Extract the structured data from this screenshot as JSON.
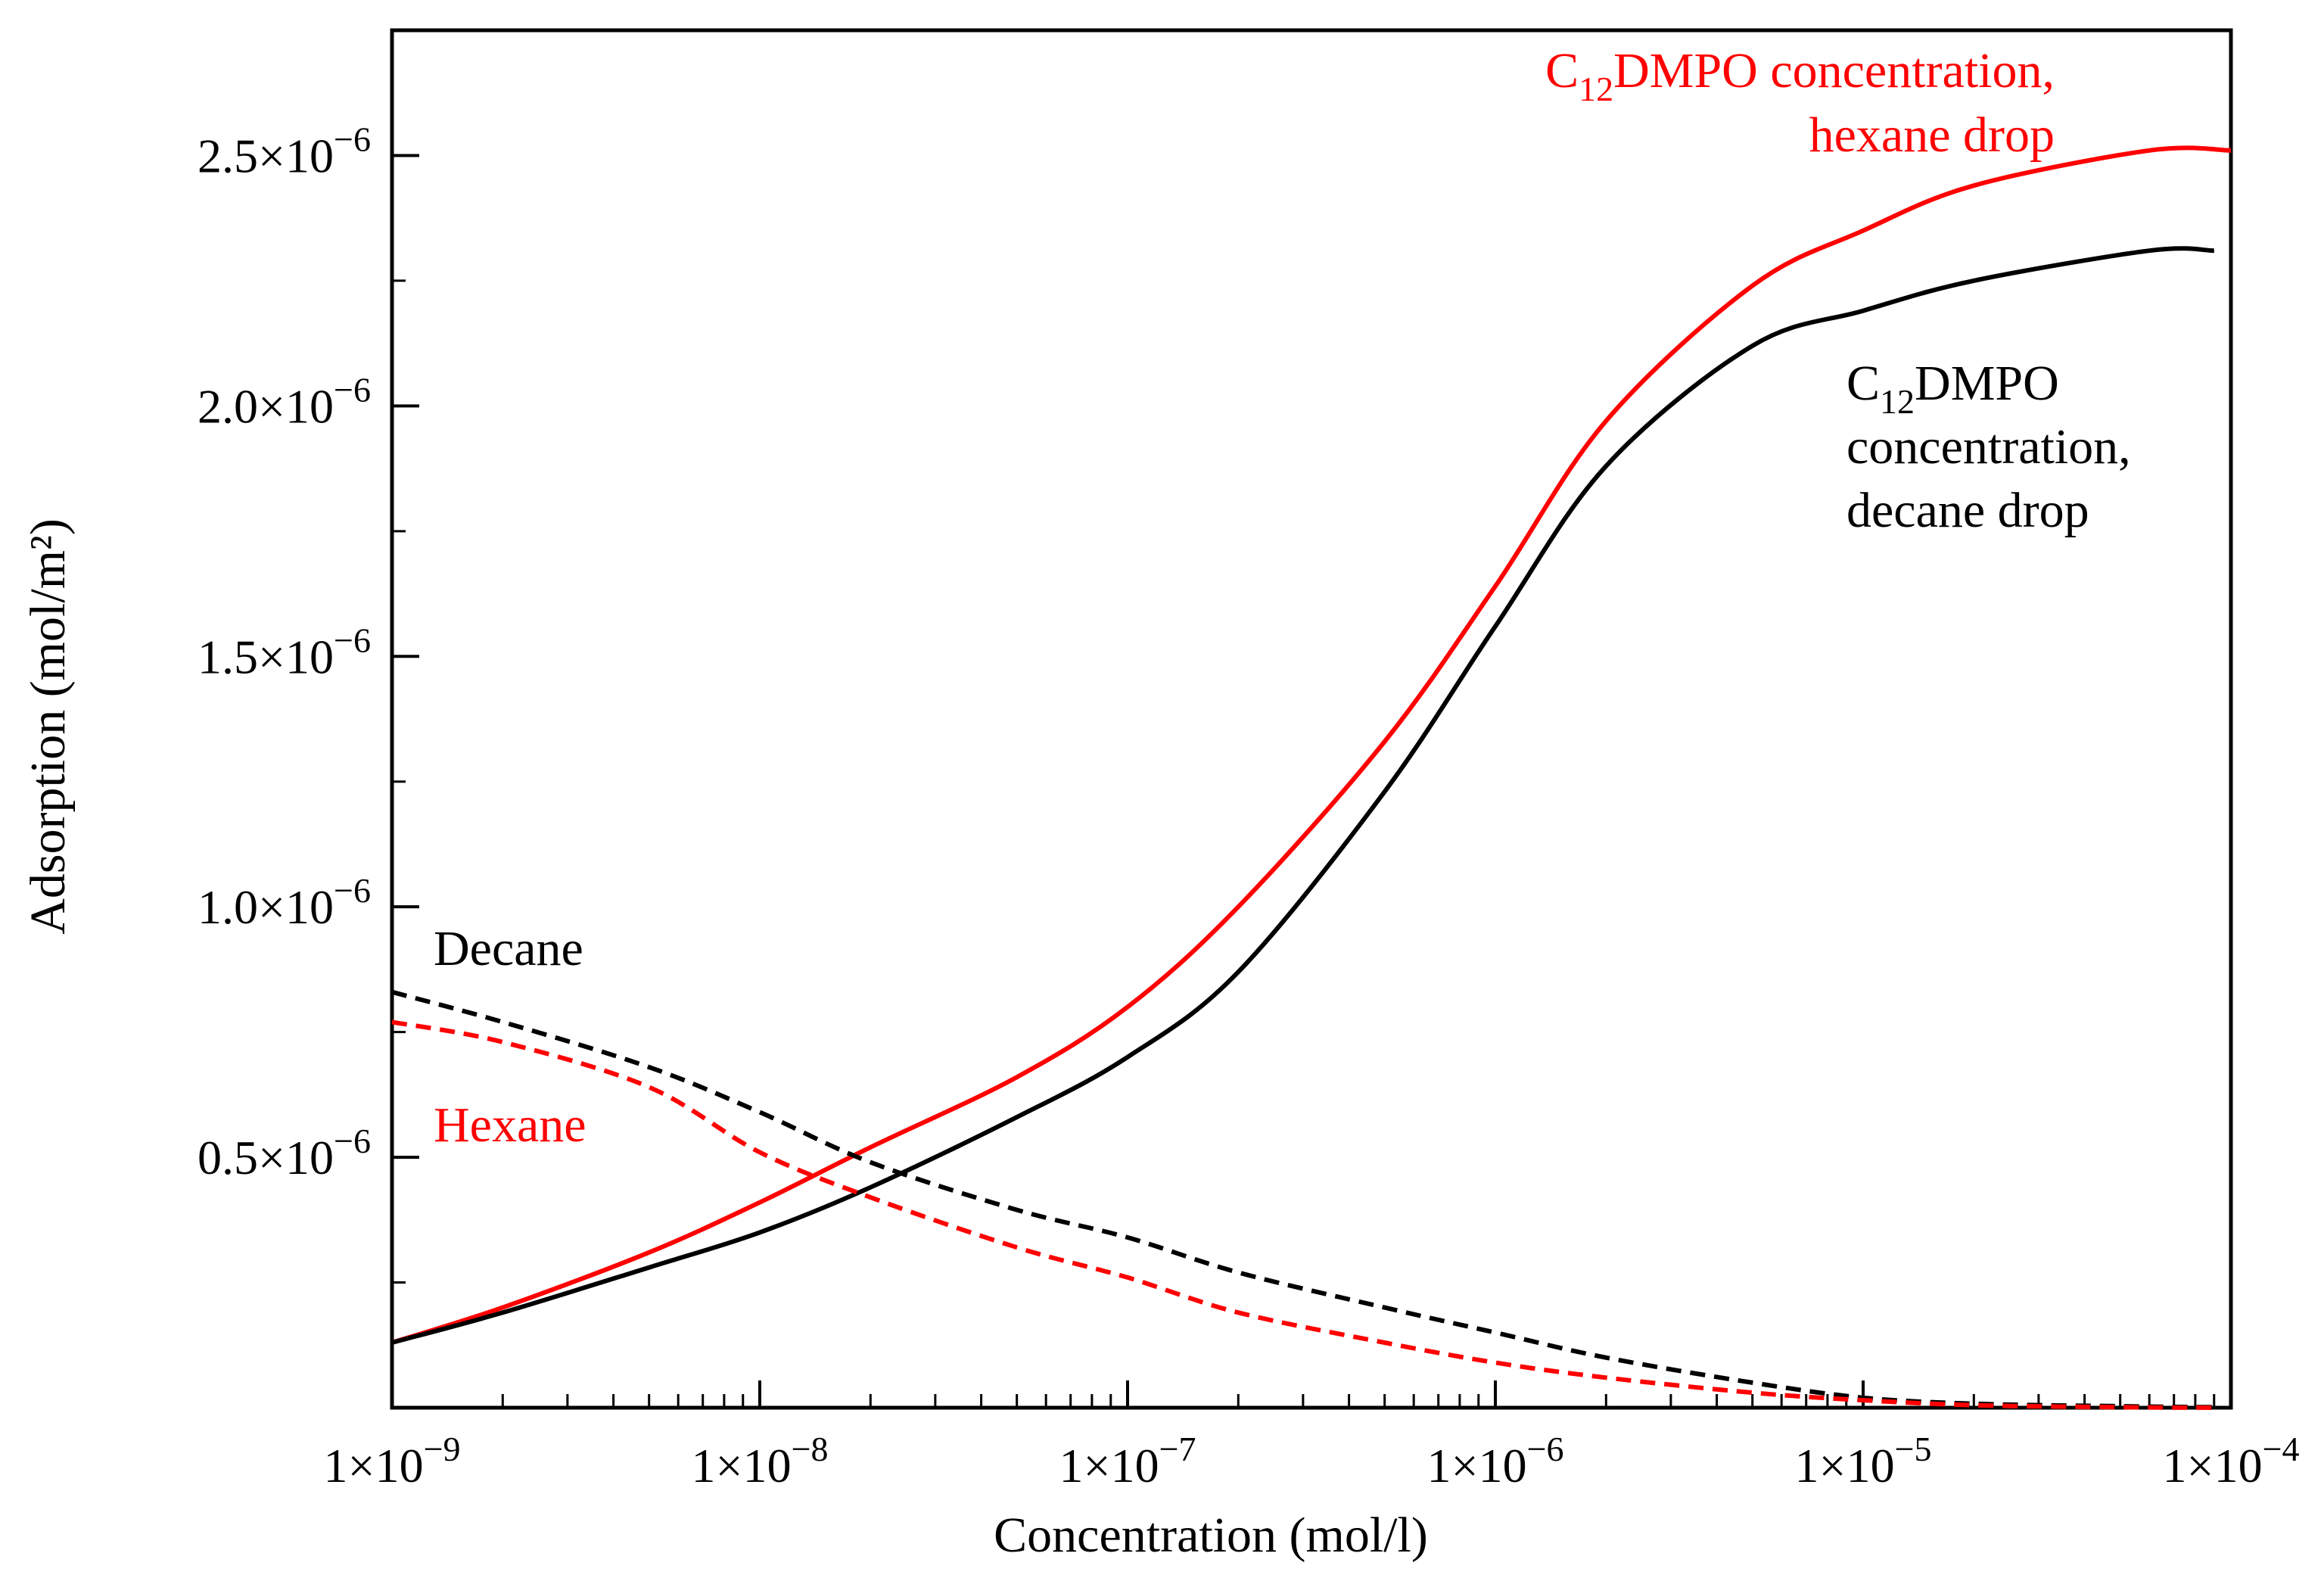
{
  "chart_data": {
    "type": "line",
    "title": "",
    "xlabel": "Concentration (mol/l)",
    "ylabel": "Adsorption (mol/m²)",
    "x_scale": "log",
    "xlim": [
      1e-09,
      0.0001
    ],
    "ylim": [
      0,
      2.75e-06
    ],
    "grid": false,
    "x_ticks": [
      {
        "value": 1e-09,
        "base": "1×10",
        "exp": "−9"
      },
      {
        "value": 1e-08,
        "base": "1×10",
        "exp": "−8"
      },
      {
        "value": 1e-07,
        "base": "1×10",
        "exp": "−7"
      },
      {
        "value": 1e-06,
        "base": "1×10",
        "exp": "−6"
      },
      {
        "value": 1e-05,
        "base": "1×10",
        "exp": "−5"
      },
      {
        "value": 0.0001,
        "base": "1×10",
        "exp": "−4"
      }
    ],
    "y_ticks": [
      {
        "value": 5e-07,
        "base": "0.5×10",
        "exp": "−6"
      },
      {
        "value": 1e-06,
        "base": "1.0×10",
        "exp": "−6"
      },
      {
        "value": 1.5e-06,
        "base": "1.5×10",
        "exp": "−6"
      },
      {
        "value": 2e-06,
        "base": "2.0×10",
        "exp": "−6"
      },
      {
        "value": 2.5e-06,
        "base": "2.5×10",
        "exp": "−6"
      }
    ],
    "y_minor_ticks": [
      2.5e-07,
      7.5e-07,
      1.25e-06,
      1.75e-06,
      2.25e-06
    ],
    "series": [
      {
        "name": "C12DMPO concentration, hexane drop",
        "color": "#ff0000",
        "style": "solid",
        "x": [
          1e-09,
          2e-09,
          5e-09,
          1e-08,
          2e-08,
          5e-08,
          1e-07,
          2e-07,
          5e-07,
          1e-06,
          2e-06,
          5e-06,
          1e-05,
          2e-05,
          6e-05,
          0.0001
        ],
        "y": [
          1.3e-07,
          2e-07,
          3.1e-07,
          4.1e-07,
          5.2e-07,
          6.6e-07,
          8e-07,
          1e-06,
          1.33e-06,
          1.64e-06,
          1.97e-06,
          2.24e-06,
          2.35e-06,
          2.44e-06,
          2.51e-06,
          2.51e-06
        ]
      },
      {
        "name": "C12DMPO concentration, decane drop",
        "color": "#000000",
        "style": "solid",
        "x": [
          1e-09,
          2e-09,
          5e-09,
          1e-08,
          2e-08,
          5e-08,
          1e-07,
          2e-07,
          5e-07,
          1e-06,
          2e-06,
          5e-06,
          1e-05,
          2e-05,
          6e-05,
          9e-05
        ],
        "y": [
          1.3e-07,
          1.9e-07,
          2.8e-07,
          3.5e-07,
          4.4e-07,
          5.8e-07,
          7e-07,
          8.7e-07,
          1.23e-06,
          1.56e-06,
          1.88e-06,
          2.12e-06,
          2.19e-06,
          2.25e-06,
          2.31e-06,
          2.31e-06
        ]
      },
      {
        "name": "Decane",
        "color": "#000000",
        "style": "dashed",
        "x": [
          1e-09,
          2e-09,
          5e-09,
          1e-08,
          2e-08,
          5e-08,
          1e-07,
          2e-07,
          5e-07,
          1e-06,
          2e-06,
          5e-06,
          1e-05,
          2e-05,
          5e-05,
          9e-05
        ],
        "y": [
          8.3e-07,
          7.7e-07,
          6.8e-07,
          5.9e-07,
          4.9e-07,
          3.95e-07,
          3.4e-07,
          2.7e-07,
          2e-07,
          1.5e-07,
          1e-07,
          5e-08,
          2e-08,
          8e-09,
          3e-09,
          1e-09
        ]
      },
      {
        "name": "Hexane",
        "color": "#ff0000",
        "style": "dashed",
        "x": [
          1e-09,
          2e-09,
          5e-09,
          1e-08,
          2e-08,
          5e-08,
          1e-07,
          2e-07,
          5e-07,
          1e-06,
          2e-06,
          5e-06,
          1e-05,
          2e-05,
          5e-05,
          9e-05
        ],
        "y": [
          7.7e-07,
          7.3e-07,
          6.4e-07,
          5.1e-07,
          4.2e-07,
          3.2e-07,
          2.6e-07,
          1.9e-07,
          1.3e-07,
          9e-08,
          6e-08,
          3e-08,
          1.5e-08,
          5e-09,
          1e-09,
          0
        ]
      }
    ],
    "annotations": {
      "hexane_curve": {
        "color": "#ff0000",
        "line1": {
          "pre": "C",
          "sub": "12",
          "post": "DMPO concentration,"
        },
        "line2": "hexane drop"
      },
      "decane_curve": {
        "color": "#000000",
        "line1": {
          "pre": "C",
          "sub": "12",
          "post": "DMPO"
        },
        "line2": "concentration,",
        "line3": "decane drop"
      },
      "decane_dashed": {
        "color": "#000000",
        "text": "Decane"
      },
      "hexane_dashed": {
        "color": "#ff0000",
        "text": "Hexane"
      }
    }
  }
}
